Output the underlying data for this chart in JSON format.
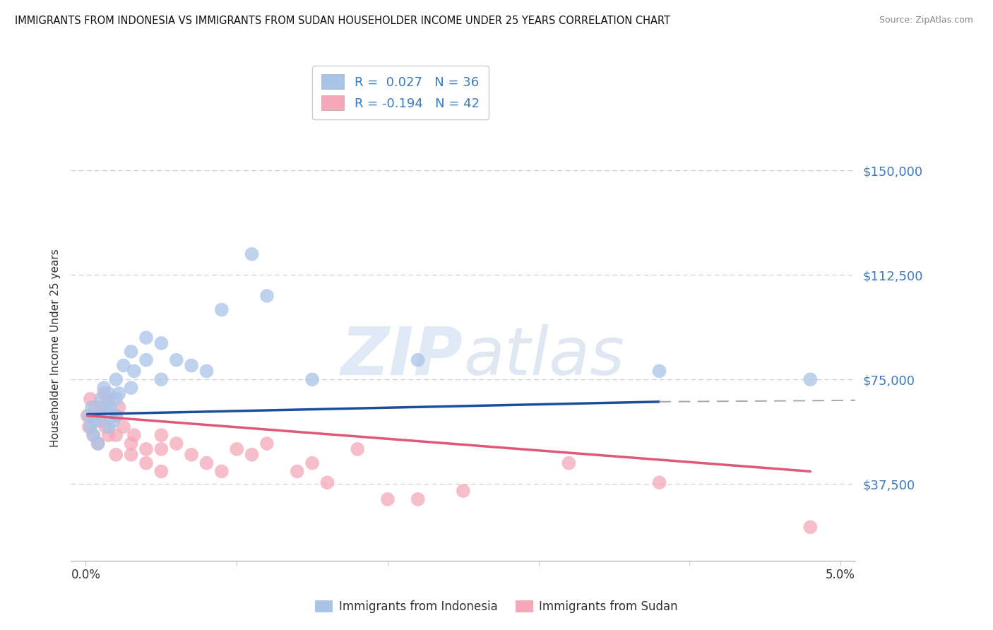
{
  "title": "IMMIGRANTS FROM INDONESIA VS IMMIGRANTS FROM SUDAN HOUSEHOLDER INCOME UNDER 25 YEARS CORRELATION CHART",
  "source": "Source: ZipAtlas.com",
  "ylabel": "Householder Income Under 25 years",
  "xlim": [
    -0.001,
    0.051
  ],
  "ylim": [
    10000,
    162500
  ],
  "yticks": [
    37500,
    75000,
    112500,
    150000
  ],
  "ytick_labels": [
    "$37,500",
    "$75,000",
    "$112,500",
    "$150,000"
  ],
  "xticks": [
    0.0,
    0.01,
    0.02,
    0.03,
    0.04,
    0.05
  ],
  "xtick_labels": [
    "0.0%",
    "",
    "",
    "",
    "",
    "5.0%"
  ],
  "grid_color": "#cccccc",
  "background_color": "#ffffff",
  "watermark": "ZIPatlas",
  "indonesia_color": "#aac4e8",
  "sudan_color": "#f4a8b8",
  "indonesia_line_color": "#1a4fa0",
  "indonesia_line_dash_color": "#aaaaaa",
  "sudan_line_color": "#e05878",
  "R_indonesia": 0.027,
  "N_indonesia": 36,
  "R_sudan": -0.194,
  "N_sudan": 42,
  "indonesia_x": [
    0.0002,
    0.0003,
    0.0004,
    0.0005,
    0.0006,
    0.0008,
    0.001,
    0.001,
    0.0012,
    0.0013,
    0.0015,
    0.0015,
    0.0016,
    0.0018,
    0.002,
    0.002,
    0.002,
    0.0022,
    0.0025,
    0.003,
    0.003,
    0.0032,
    0.004,
    0.004,
    0.005,
    0.005,
    0.006,
    0.007,
    0.008,
    0.009,
    0.011,
    0.012,
    0.015,
    0.022,
    0.038,
    0.048
  ],
  "indonesia_y": [
    62000,
    58000,
    65000,
    55000,
    60000,
    52000,
    68000,
    62000,
    72000,
    65000,
    70000,
    58000,
    65000,
    60000,
    75000,
    68000,
    62000,
    70000,
    80000,
    85000,
    72000,
    78000,
    90000,
    82000,
    88000,
    75000,
    82000,
    80000,
    78000,
    100000,
    120000,
    105000,
    75000,
    82000,
    78000,
    75000
  ],
  "sudan_x": [
    0.0001,
    0.0002,
    0.0003,
    0.0005,
    0.0006,
    0.0008,
    0.001,
    0.001,
    0.0012,
    0.0013,
    0.0015,
    0.0015,
    0.002,
    0.002,
    0.002,
    0.0022,
    0.0025,
    0.003,
    0.003,
    0.0032,
    0.004,
    0.004,
    0.005,
    0.005,
    0.005,
    0.006,
    0.007,
    0.008,
    0.009,
    0.01,
    0.011,
    0.012,
    0.014,
    0.015,
    0.016,
    0.018,
    0.02,
    0.022,
    0.025,
    0.032,
    0.038,
    0.048
  ],
  "sudan_y": [
    62000,
    58000,
    68000,
    55000,
    65000,
    52000,
    65000,
    60000,
    70000,
    58000,
    68000,
    55000,
    62000,
    55000,
    48000,
    65000,
    58000,
    52000,
    48000,
    55000,
    50000,
    45000,
    55000,
    50000,
    42000,
    52000,
    48000,
    45000,
    42000,
    50000,
    48000,
    52000,
    42000,
    45000,
    38000,
    50000,
    32000,
    32000,
    35000,
    45000,
    38000,
    22000
  ]
}
